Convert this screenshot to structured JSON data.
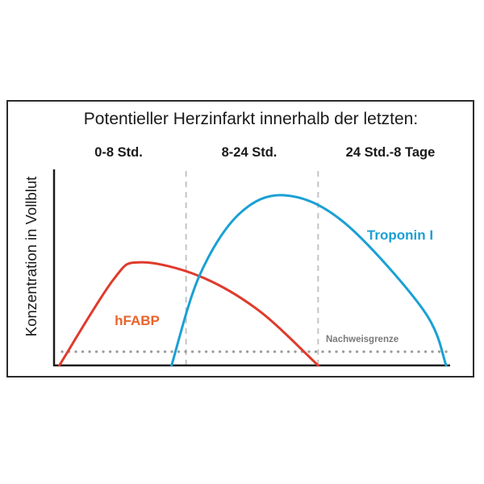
{
  "chart_data": {
    "type": "line",
    "title": "Potentieller Herzinfarkt innerhalb der letzten:",
    "ylabel": "Konzentration in Vollblut",
    "xlabel": "",
    "periods": [
      "0-8 Std.",
      "8-24 Std.",
      "24 Std.-8 Tage"
    ],
    "grid": false,
    "x_domain": [
      0,
      3
    ],
    "y_domain": [
      0,
      1
    ],
    "detection_limit": {
      "label": "Nachweisgrenze",
      "value": 0.08,
      "color": "#9a9a9a",
      "style": "dotted"
    },
    "series": [
      {
        "name": "hFABP",
        "color": "#e03a2c",
        "label_color": "#e8632b",
        "points": [
          [
            0.04,
            0.0
          ],
          [
            0.45,
            0.5
          ],
          [
            0.65,
            0.6
          ],
          [
            1.1,
            0.52
          ],
          [
            1.55,
            0.32
          ],
          [
            2.0,
            0.0
          ]
        ]
      },
      {
        "name": "Troponin I",
        "color": "#1aa0d4",
        "label_color": "#1aa0d4",
        "points": [
          [
            0.89,
            0.0
          ],
          [
            1.1,
            0.52
          ],
          [
            1.4,
            0.88
          ],
          [
            1.75,
            0.99
          ],
          [
            2.2,
            0.83
          ],
          [
            2.8,
            0.32
          ],
          [
            2.97,
            0.0
          ]
        ]
      }
    ]
  }
}
